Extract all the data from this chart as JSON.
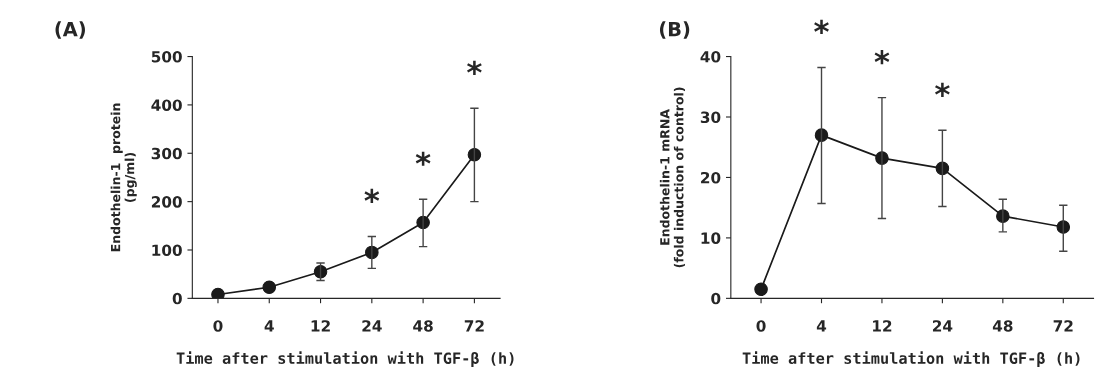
{
  "chart_data": [
    {
      "type": "line",
      "title": "(A)",
      "categories": [
        "0",
        "4",
        "12",
        "24",
        "48",
        "72"
      ],
      "xlabel": "Time after stimulation with TGF-β (h)",
      "ylabel": "Endothelin-1  protein\n(pg/ml)",
      "series": [
        {
          "color": "#1a1a1a",
          "values": [
            8,
            23,
            55,
            95,
            157,
            297
          ],
          "errors": [
            null,
            null,
            [
              37,
              73
            ],
            [
              62,
              128
            ],
            [
              107,
              205
            ],
            [
              200,
              393
            ]
          ]
        }
      ],
      "ylim": [
        0,
        500
      ],
      "yticks": [
        0,
        100,
        200,
        300,
        400,
        500
      ],
      "marker": "circle",
      "line_style": "solid",
      "grid": false,
      "legend": false,
      "annotations": [
        {
          "text": "*",
          "x": "24",
          "y": 128
        },
        {
          "text": "*",
          "x": "48",
          "y": 205
        },
        {
          "text": "*",
          "x": "72",
          "y": 393
        }
      ]
    },
    {
      "type": "line",
      "title": "(B)",
      "categories": [
        "0",
        "4",
        "12",
        "24",
        "48",
        "72"
      ],
      "xlabel": "Time after stimulation with TGF-β (h)",
      "ylabel": "Endothelin-1 mRNA\n(fold induction of control)",
      "series": [
        {
          "color": "#1a1a1a",
          "values": [
            1.5,
            27,
            23.2,
            21.5,
            13.6,
            11.8
          ],
          "errors": [
            null,
            [
              15.7,
              38.2
            ],
            [
              13.2,
              33.2
            ],
            [
              15.2,
              27.8
            ],
            [
              11,
              16.4
            ],
            [
              7.8,
              15.4
            ]
          ]
        }
      ],
      "ylim": [
        0,
        40
      ],
      "yticks": [
        0,
        10,
        20,
        30,
        40
      ],
      "marker": "circle",
      "line_style": "solid",
      "grid": false,
      "legend": false,
      "annotations": [
        {
          "text": "*",
          "x": "4",
          "y": 38.2
        },
        {
          "text": "*",
          "x": "12",
          "y": 33.2
        },
        {
          "text": "*",
          "x": "24",
          "y": 27.8
        }
      ]
    }
  ]
}
